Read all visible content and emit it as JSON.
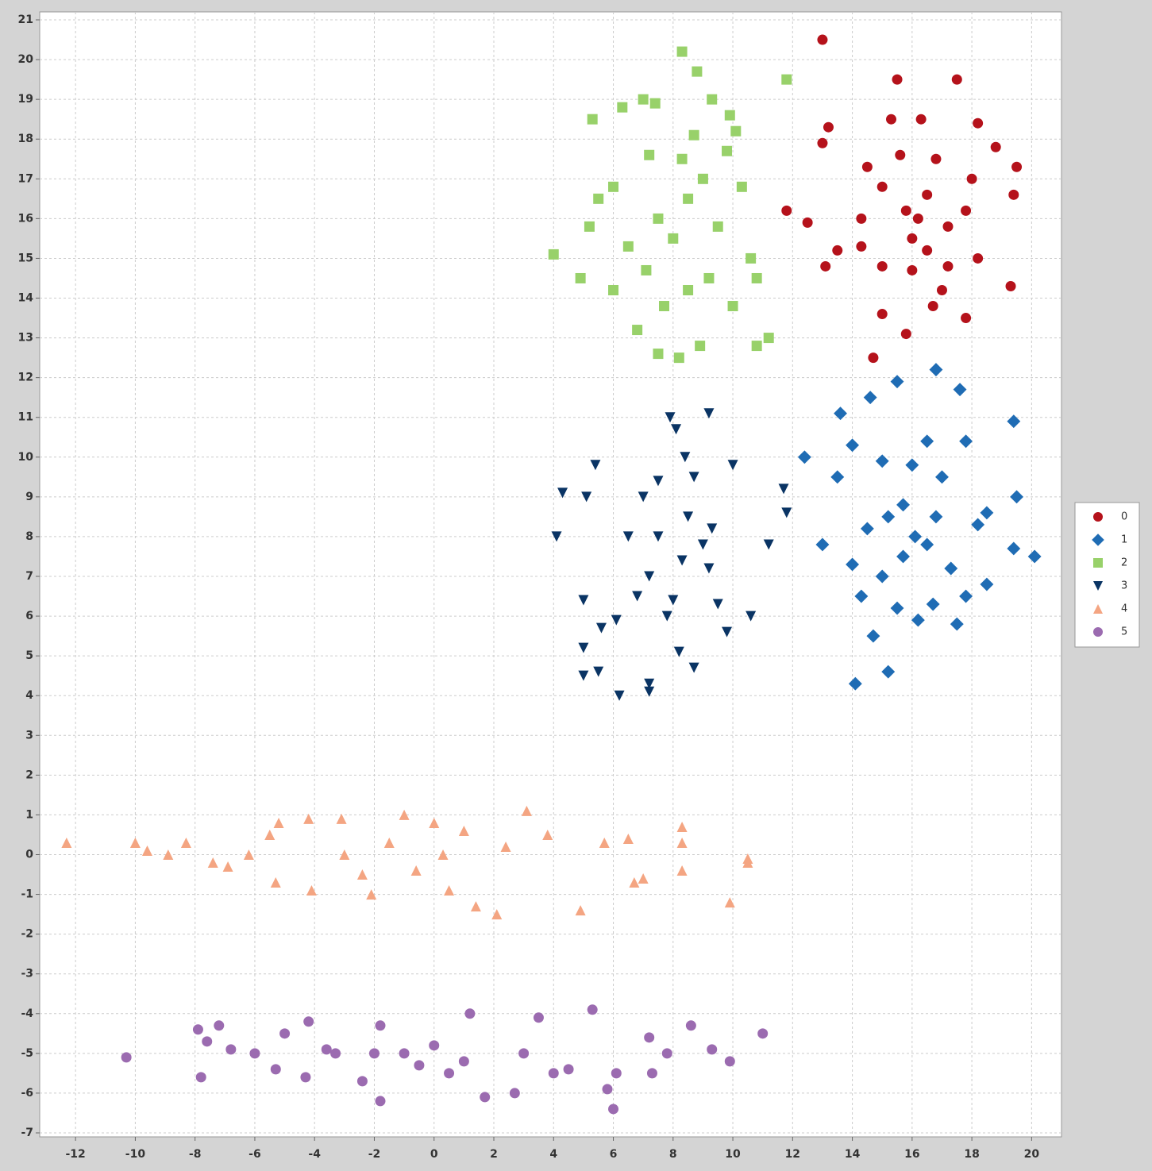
{
  "chart_data": {
    "type": "scatter",
    "xlim": [
      -13.2,
      21.0
    ],
    "ylim": [
      -7.1,
      21.2
    ],
    "xticks": [
      -12,
      -10,
      -8,
      -6,
      -4,
      -2,
      0,
      2,
      4,
      6,
      8,
      10,
      12,
      14,
      16,
      18,
      20
    ],
    "yticks": [
      -7,
      -6,
      -5,
      -4,
      -3,
      -2,
      -1,
      0,
      1,
      2,
      3,
      4,
      5,
      6,
      7,
      8,
      9,
      10,
      11,
      12,
      13,
      14,
      15,
      16,
      17,
      18,
      19,
      20,
      21
    ],
    "grid": true,
    "legend": "right",
    "series": [
      {
        "name": "0",
        "color": "#b5121b",
        "marker": "circle",
        "x": [
          13,
          15.5,
          17.5,
          11.8,
          12.5,
          14.7,
          15.8,
          19.3,
          19.4,
          19.5,
          13,
          13.2,
          18.2,
          13.5,
          13.1,
          15.3,
          16.3,
          17.8,
          15,
          14.5,
          15,
          15.8,
          16.2,
          16,
          16.5,
          17.2,
          17.8,
          18,
          16.8,
          15.6,
          14.3,
          15,
          16,
          17,
          18.2,
          18.8,
          14.3,
          16.5,
          17.2,
          16.7
        ],
        "values": [
          20.5,
          19.5,
          19.5,
          16.2,
          15.9,
          12.5,
          13.1,
          14.3,
          16.6,
          17.3,
          17.9,
          18.3,
          18.4,
          15.2,
          14.8,
          18.5,
          18.5,
          13.5,
          13.6,
          17.3,
          16.8,
          16.2,
          16,
          15.5,
          15.2,
          15.8,
          16.2,
          17,
          17.5,
          17.6,
          15.3,
          14.8,
          14.7,
          14.2,
          15,
          17.8,
          16,
          16.6,
          14.8,
          13.8
        ]
      },
      {
        "name": "1",
        "color": "#1f6cb4",
        "marker": "diamond",
        "x": [
          16.8,
          15.5,
          14.6,
          13.6,
          12.4,
          13.5,
          14,
          19.4,
          20.1,
          19.5,
          19.4,
          14.1,
          15.2,
          14.7,
          14.3,
          13,
          16.7,
          17.5,
          18.5,
          16,
          16.5,
          17.8,
          15.7,
          16.1,
          16.5,
          15,
          17.3,
          18.2,
          15.2,
          14.5,
          17,
          15.5,
          16.2,
          17.6,
          15,
          18.5,
          14,
          16.8,
          17.8,
          15.7
        ],
        "values": [
          12.2,
          11.9,
          11.5,
          11.1,
          10,
          9.5,
          10.3,
          10.9,
          7.5,
          9,
          7.7,
          4.3,
          4.6,
          5.5,
          6.5,
          7.8,
          6.3,
          5.8,
          6.8,
          9.8,
          10.4,
          10.4,
          8.8,
          8,
          7.8,
          7,
          7.2,
          8.3,
          8.5,
          8.2,
          9.5,
          6.2,
          5.9,
          11.7,
          9.9,
          8.6,
          7.3,
          8.5,
          6.5,
          7.5
        ]
      },
      {
        "name": "2",
        "color": "#98d16a",
        "marker": "square",
        "x": [
          8.3,
          8.8,
          11.8,
          7,
          7.4,
          9.3,
          5.3,
          6.3,
          4,
          4.9,
          10.8,
          10.8,
          11.2,
          7.5,
          8.2,
          8.9,
          6.8,
          10,
          9.2,
          8,
          8.5,
          7.5,
          8.3,
          9,
          9.8,
          6,
          5.5,
          6.5,
          7.1,
          8.5,
          9.5,
          10.3,
          10.6,
          5.2,
          7.2,
          8.7,
          9.9,
          6,
          7.7,
          10.1
        ],
        "values": [
          20.2,
          19.7,
          19.5,
          19,
          18.9,
          19,
          18.5,
          18.8,
          15.1,
          14.5,
          14.5,
          12.8,
          13,
          12.6,
          12.5,
          12.8,
          13.2,
          13.8,
          14.5,
          15.5,
          16.5,
          16,
          17.5,
          17,
          17.7,
          16.8,
          16.5,
          15.3,
          14.7,
          14.2,
          15.8,
          16.8,
          15,
          15.8,
          17.6,
          18.1,
          18.6,
          14.2,
          13.8,
          18.2
        ]
      },
      {
        "name": "3",
        "color": "#0a3464",
        "marker": "triangle-down",
        "x": [
          7.9,
          9.2,
          8.1,
          5.4,
          4.3,
          5.1,
          4.1,
          11.2,
          11.7,
          11.8,
          10.6,
          10,
          5,
          5,
          5,
          5.5,
          6.2,
          7.2,
          7.2,
          8.7,
          8.2,
          9.8,
          5.6,
          6.1,
          8.3,
          9,
          8.5,
          7.5,
          7.2,
          8,
          9.5,
          9.3,
          7,
          6.5,
          8.7,
          7.8,
          9.2,
          6.8,
          8.4,
          7.5
        ],
        "values": [
          11,
          11.1,
          10.7,
          9.8,
          9.1,
          9,
          8,
          7.8,
          9.2,
          8.6,
          6,
          9.8,
          6.4,
          5.2,
          4.5,
          4.6,
          4,
          4.1,
          4.3,
          4.7,
          5.1,
          5.6,
          5.7,
          5.9,
          7.4,
          7.8,
          8.5,
          8,
          7,
          6.4,
          6.3,
          8.2,
          9,
          8,
          9.5,
          6,
          7.2,
          6.5,
          10,
          9.4
        ]
      },
      {
        "name": "4",
        "color": "#f4a582",
        "marker": "triangle-up",
        "x": [
          -12.3,
          -10,
          -9.6,
          -8.9,
          -8.3,
          -7.4,
          -6.9,
          -6.2,
          -5.5,
          -5.2,
          -5.3,
          -4.1,
          -4.2,
          -3.1,
          -2.4,
          -2.1,
          -1.5,
          -1,
          0,
          0.5,
          1.4,
          2.1,
          3.1,
          3.8,
          4.9,
          5.7,
          6.5,
          6.7,
          7,
          8.3,
          8.3,
          8.3,
          9.9,
          10.5,
          10.5,
          0.3,
          -3,
          2.4,
          1,
          -0.6
        ],
        "values": [
          0.3,
          0.3,
          0.1,
          0,
          0.3,
          -0.2,
          -0.3,
          0,
          0.5,
          0.8,
          -0.7,
          -0.9,
          0.9,
          0.9,
          -0.5,
          -1,
          0.3,
          1,
          0.8,
          -0.9,
          -1.3,
          -1.5,
          1.1,
          0.5,
          -1.4,
          0.3,
          0.4,
          -0.7,
          -0.6,
          0.7,
          -0.4,
          0.3,
          -1.2,
          -0.1,
          -0.2,
          0,
          0,
          0.2,
          0.6,
          -0.4
        ]
      },
      {
        "name": "5",
        "color": "#9b6bb0",
        "marker": "circle",
        "x": [
          -10.3,
          -7.9,
          -7.8,
          -7.6,
          -7.2,
          -6.8,
          -6,
          -5.3,
          -5,
          -4.2,
          -4.3,
          -3.6,
          -2.4,
          -1.8,
          -1.8,
          -1,
          -0.5,
          0,
          0.5,
          1.2,
          1.7,
          2.7,
          3.5,
          4,
          4.5,
          5.3,
          5.8,
          6,
          6.1,
          7.2,
          7.3,
          7.8,
          8.6,
          9.3,
          9.9,
          11,
          -2,
          1,
          3,
          -3.3
        ],
        "values": [
          -5.1,
          -4.4,
          -5.6,
          -4.7,
          -4.3,
          -4.9,
          -5,
          -5.4,
          -4.5,
          -4.2,
          -5.6,
          -4.9,
          -5.7,
          -6.2,
          -4.3,
          -5,
          -5.3,
          -4.8,
          -5.5,
          -4,
          -6.1,
          -6,
          -4.1,
          -5.5,
          -5.4,
          -3.9,
          -5.9,
          -6.4,
          -5.5,
          -4.6,
          -5.5,
          -5,
          -4.3,
          -4.9,
          -5.2,
          -4.5,
          -5,
          -5.2,
          -5,
          -5
        ]
      }
    ]
  }
}
